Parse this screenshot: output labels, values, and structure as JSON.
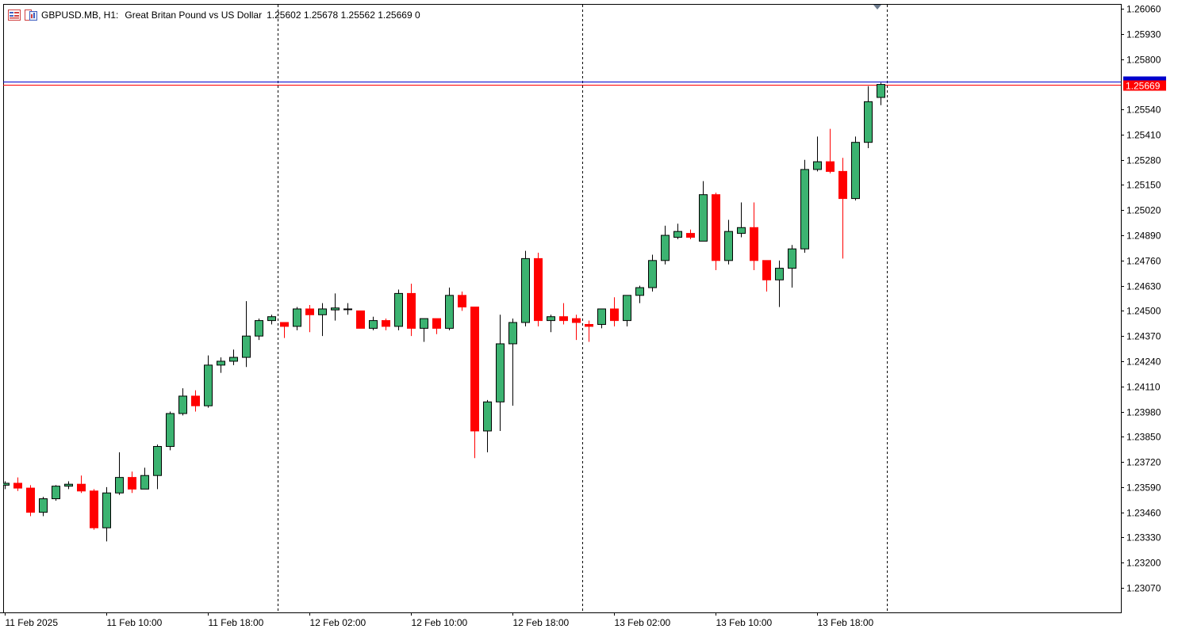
{
  "header": {
    "symbol_timeframe": "GBPUSD.MB, H1:",
    "description": "Great Britan Pound vs US Dollar",
    "ohlc": "1.25602 1.25678 1.25562 1.25669  0"
  },
  "current_price_label": "1.25669",
  "colors": {
    "bull": "#3cb371",
    "bear": "#ff0000",
    "bid_line": "#ff0000",
    "ask_line": "#0000cd",
    "grid": "#000000",
    "axis": "#000000"
  },
  "icons": [
    "chart-list-icon",
    "chart-window-icon"
  ],
  "chart_data": {
    "type": "candlestick",
    "symbol": "GBPUSD.MB",
    "timeframe": "H1",
    "ylim": [
      1.2294,
      1.2612
    ],
    "y_ticks": [
      "1.26060",
      "1.25930",
      "1.25800",
      "1.25540",
      "1.25410",
      "1.25280",
      "1.25150",
      "1.25020",
      "1.24890",
      "1.24760",
      "1.24630",
      "1.24500",
      "1.24370",
      "1.24240",
      "1.24110",
      "1.23980",
      "1.23850",
      "1.23720",
      "1.23590",
      "1.23460",
      "1.23330",
      "1.23200",
      "1.23070"
    ],
    "x_ticks": [
      {
        "label": "11 Feb 2025",
        "index": 0
      },
      {
        "label": "11 Feb 10:00",
        "index": 8
      },
      {
        "label": "11 Feb 18:00",
        "index": 16
      },
      {
        "label": "12 Feb 02:00",
        "index": 24
      },
      {
        "label": "12 Feb 10:00",
        "index": 32
      },
      {
        "label": "12 Feb 18:00",
        "index": 40
      },
      {
        "label": "13 Feb 02:00",
        "index": 48
      },
      {
        "label": "13 Feb 10:00",
        "index": 56
      },
      {
        "label": "13 Feb 18:00",
        "index": 64
      }
    ],
    "day_separators": [
      22,
      46,
      70
    ],
    "bid": 1.25669,
    "ask": 1.25685,
    "candles": [
      {
        "o": 1.236,
        "h": 1.2362,
        "l": 1.2358,
        "c": 1.2361
      },
      {
        "o": 1.2361,
        "h": 1.2364,
        "l": 1.2357,
        "c": 1.23585
      },
      {
        "o": 1.23585,
        "h": 1.236,
        "l": 1.2344,
        "c": 1.2346
      },
      {
        "o": 1.2346,
        "h": 1.2354,
        "l": 1.2344,
        "c": 1.2353
      },
      {
        "o": 1.2353,
        "h": 1.236,
        "l": 1.2352,
        "c": 1.23595
      },
      {
        "o": 1.23595,
        "h": 1.2362,
        "l": 1.2358,
        "c": 1.23605
      },
      {
        "o": 1.23605,
        "h": 1.2365,
        "l": 1.2356,
        "c": 1.2357
      },
      {
        "o": 1.2357,
        "h": 1.2358,
        "l": 1.2337,
        "c": 1.2338
      },
      {
        "o": 1.2338,
        "h": 1.2359,
        "l": 1.2331,
        "c": 1.2356
      },
      {
        "o": 1.2356,
        "h": 1.2377,
        "l": 1.2355,
        "c": 1.2364
      },
      {
        "o": 1.2364,
        "h": 1.2367,
        "l": 1.2356,
        "c": 1.2358
      },
      {
        "o": 1.2358,
        "h": 1.2369,
        "l": 1.2358,
        "c": 1.2365
      },
      {
        "o": 1.2365,
        "h": 1.2381,
        "l": 1.2358,
        "c": 1.238
      },
      {
        "o": 1.238,
        "h": 1.2398,
        "l": 1.2378,
        "c": 1.2397
      },
      {
        "o": 1.2397,
        "h": 1.241,
        "l": 1.2396,
        "c": 1.2406
      },
      {
        "o": 1.2406,
        "h": 1.2409,
        "l": 1.2398,
        "c": 1.2401
      },
      {
        "o": 1.2401,
        "h": 1.2427,
        "l": 1.24,
        "c": 1.2422
      },
      {
        "o": 1.2422,
        "h": 1.2426,
        "l": 1.2418,
        "c": 1.2424
      },
      {
        "o": 1.2424,
        "h": 1.243,
        "l": 1.2422,
        "c": 1.2426
      },
      {
        "o": 1.2426,
        "h": 1.2455,
        "l": 1.2421,
        "c": 1.2437
      },
      {
        "o": 1.2437,
        "h": 1.2446,
        "l": 1.2435,
        "c": 1.2445
      },
      {
        "o": 1.2445,
        "h": 1.2448,
        "l": 1.2443,
        "c": 1.2447
      },
      {
        "o": 1.2444,
        "h": 1.2444,
        "l": 1.2436,
        "c": 1.2442
      },
      {
        "o": 1.2442,
        "h": 1.2452,
        "l": 1.244,
        "c": 1.2451
      },
      {
        "o": 1.2451,
        "h": 1.2453,
        "l": 1.2439,
        "c": 1.2448
      },
      {
        "o": 1.2448,
        "h": 1.2454,
        "l": 1.2437,
        "c": 1.2451
      },
      {
        "o": 1.24505,
        "h": 1.2459,
        "l": 1.2445,
        "c": 1.24515
      },
      {
        "o": 1.2451,
        "h": 1.2454,
        "l": 1.2448,
        "c": 1.2451
      },
      {
        "o": 1.245,
        "h": 1.245,
        "l": 1.2441,
        "c": 1.2441
      },
      {
        "o": 1.2441,
        "h": 1.2447,
        "l": 1.244,
        "c": 1.2445
      },
      {
        "o": 1.2445,
        "h": 1.2446,
        "l": 1.244,
        "c": 1.2442
      },
      {
        "o": 1.2442,
        "h": 1.2461,
        "l": 1.244,
        "c": 1.2459
      },
      {
        "o": 1.2459,
        "h": 1.2464,
        "l": 1.2437,
        "c": 1.2441
      },
      {
        "o": 1.2441,
        "h": 1.2446,
        "l": 1.2434,
        "c": 1.2446
      },
      {
        "o": 1.2446,
        "h": 1.2446,
        "l": 1.2438,
        "c": 1.2441
      },
      {
        "o": 1.2441,
        "h": 1.2462,
        "l": 1.244,
        "c": 1.2458
      },
      {
        "o": 1.2458,
        "h": 1.246,
        "l": 1.245,
        "c": 1.2452
      },
      {
        "o": 1.2452,
        "h": 1.2452,
        "l": 1.2374,
        "c": 1.2388
      },
      {
        "o": 1.2388,
        "h": 1.2404,
        "l": 1.2377,
        "c": 1.2403
      },
      {
        "o": 1.2403,
        "h": 1.2448,
        "l": 1.2388,
        "c": 1.2433
      },
      {
        "o": 1.2433,
        "h": 1.2446,
        "l": 1.2401,
        "c": 1.2444
      },
      {
        "o": 1.2444,
        "h": 1.2481,
        "l": 1.2442,
        "c": 1.2477
      },
      {
        "o": 1.2477,
        "h": 1.248,
        "l": 1.2442,
        "c": 1.2445
      },
      {
        "o": 1.2445,
        "h": 1.2448,
        "l": 1.2439,
        "c": 1.2447
      },
      {
        "o": 1.2447,
        "h": 1.2454,
        "l": 1.2443,
        "c": 1.2445
      },
      {
        "o": 1.2446,
        "h": 1.2448,
        "l": 1.2435,
        "c": 1.2444
      },
      {
        "o": 1.2443,
        "h": 1.2445,
        "l": 1.2434,
        "c": 1.2442
      },
      {
        "o": 1.2443,
        "h": 1.2451,
        "l": 1.2441,
        "c": 1.2451
      },
      {
        "o": 1.2451,
        "h": 1.2457,
        "l": 1.2442,
        "c": 1.2445
      },
      {
        "o": 1.2445,
        "h": 1.2458,
        "l": 1.2442,
        "c": 1.2458
      },
      {
        "o": 1.2458,
        "h": 1.2463,
        "l": 1.2454,
        "c": 1.2462
      },
      {
        "o": 1.2462,
        "h": 1.2479,
        "l": 1.246,
        "c": 1.2476
      },
      {
        "o": 1.2476,
        "h": 1.2494,
        "l": 1.2474,
        "c": 1.2489
      },
      {
        "o": 1.2488,
        "h": 1.2495,
        "l": 1.2487,
        "c": 1.2491
      },
      {
        "o": 1.249,
        "h": 1.2492,
        "l": 1.2487,
        "c": 1.2488
      },
      {
        "o": 1.2486,
        "h": 1.2517,
        "l": 1.2486,
        "c": 1.251
      },
      {
        "o": 1.251,
        "h": 1.2511,
        "l": 1.2471,
        "c": 1.2476
      },
      {
        "o": 1.2476,
        "h": 1.2497,
        "l": 1.2474,
        "c": 1.2491
      },
      {
        "o": 1.249,
        "h": 1.2506,
        "l": 1.2488,
        "c": 1.2493
      },
      {
        "o": 1.2493,
        "h": 1.2506,
        "l": 1.2471,
        "c": 1.2476
      },
      {
        "o": 1.2476,
        "h": 1.2476,
        "l": 1.246,
        "c": 1.2466
      },
      {
        "o": 1.2466,
        "h": 1.2476,
        "l": 1.2452,
        "c": 1.2472
      },
      {
        "o": 1.2472,
        "h": 1.2484,
        "l": 1.2462,
        "c": 1.2482
      },
      {
        "o": 1.2482,
        "h": 1.2528,
        "l": 1.248,
        "c": 1.2523
      },
      {
        "o": 1.2523,
        "h": 1.254,
        "l": 1.2522,
        "c": 1.2527
      },
      {
        "o": 1.2527,
        "h": 1.2544,
        "l": 1.2521,
        "c": 1.2522
      },
      {
        "o": 1.2522,
        "h": 1.2529,
        "l": 1.2477,
        "c": 1.2508
      },
      {
        "o": 1.2508,
        "h": 1.254,
        "l": 1.2507,
        "c": 1.2537
      },
      {
        "o": 1.2537,
        "h": 1.2566,
        "l": 1.2534,
        "c": 1.2558
      },
      {
        "o": 1.25602,
        "h": 1.25678,
        "l": 1.25562,
        "c": 1.25669
      }
    ]
  }
}
